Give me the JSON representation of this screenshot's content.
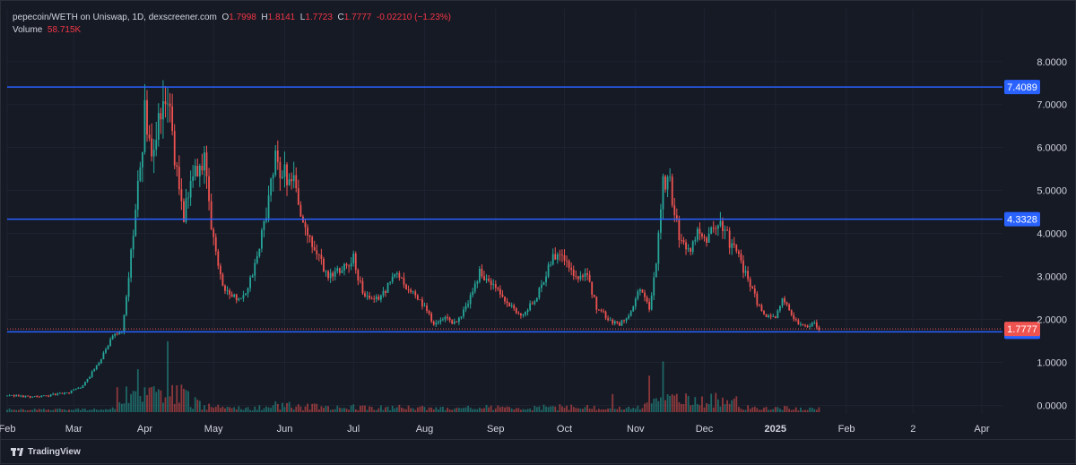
{
  "legend": {
    "title": "pepecoin/WETH on Uniswap, 1D, dexscreener.com",
    "open_label": "O",
    "open": "1.7998",
    "high_label": "H",
    "high": "1.8141",
    "low_label": "L",
    "low": "1.7723",
    "close_label": "C",
    "close": "1.7777",
    "change": "-0.02210 (−1.23%)",
    "volume_label": "Volume",
    "volume": "58.715K"
  },
  "branding": {
    "name": "TradingView"
  },
  "colors": {
    "up": "#26a69a",
    "down": "#ef5350",
    "level": "#2962ff",
    "background": "#161a25",
    "grid": "#1f2330",
    "text": "#d1d4dc"
  },
  "chart_data": {
    "type": "candlestick",
    "timeframe": "1D",
    "y_axis": {
      "ticks": [
        "8.0000",
        "7.0000",
        "6.0000",
        "5.0000",
        "4.0000",
        "3.0000",
        "2.0000",
        "1.0000",
        "0.0000"
      ],
      "range": [
        -0.2,
        8.6
      ],
      "position": "right"
    },
    "x_axis": {
      "ticks": [
        "Feb",
        "Mar",
        "Apr",
        "May",
        "Jun",
        "Jul",
        "Aug",
        "Sep",
        "Oct",
        "Nov",
        "Dec",
        "2025",
        "Feb",
        "2",
        "Apr"
      ],
      "range": [
        "2024-02-01",
        "2025-04-10"
      ]
    },
    "horizontal_levels": [
      {
        "value": 7.4089,
        "label": "7.4089"
      },
      {
        "value": 4.3328,
        "label": "4.3328"
      },
      {
        "value": 1.7105,
        "label": "1.7105"
      }
    ],
    "last_price": {
      "value": 1.7777,
      "label": "1.7777"
    },
    "price_path": [
      [
        "2024-02-01",
        0.22
      ],
      [
        "2024-02-15",
        0.2
      ],
      [
        "2024-02-28",
        0.3
      ],
      [
        "2024-03-05",
        0.45
      ],
      [
        "2024-03-12",
        1.0
      ],
      [
        "2024-03-18",
        1.6
      ],
      [
        "2024-03-22",
        1.75
      ],
      [
        "2024-03-25",
        3.0
      ],
      [
        "2024-03-28",
        4.5
      ],
      [
        "2024-04-01",
        6.8
      ],
      [
        "2024-04-04",
        5.6
      ],
      [
        "2024-04-07",
        6.9
      ],
      [
        "2024-04-11",
        7.4
      ],
      [
        "2024-04-14",
        5.7
      ],
      [
        "2024-04-18",
        4.4
      ],
      [
        "2024-04-22",
        5.4
      ],
      [
        "2024-04-27",
        5.6
      ],
      [
        "2024-04-30",
        4.1
      ],
      [
        "2024-05-05",
        2.8
      ],
      [
        "2024-05-10",
        2.5
      ],
      [
        "2024-05-15",
        2.6
      ],
      [
        "2024-05-20",
        3.4
      ],
      [
        "2024-05-25",
        4.8
      ],
      [
        "2024-05-28",
        5.7
      ],
      [
        "2024-06-01",
        5.4
      ],
      [
        "2024-06-05",
        5.3
      ],
      [
        "2024-06-10",
        4.0
      ],
      [
        "2024-06-15",
        3.5
      ],
      [
        "2024-06-20",
        3.0
      ],
      [
        "2024-06-25",
        3.2
      ],
      [
        "2024-07-01",
        3.4
      ],
      [
        "2024-07-05",
        2.6
      ],
      [
        "2024-07-10",
        2.4
      ],
      [
        "2024-07-15",
        2.7
      ],
      [
        "2024-07-20",
        3.1
      ],
      [
        "2024-07-25",
        2.7
      ],
      [
        "2024-08-01",
        2.3
      ],
      [
        "2024-08-05",
        1.9
      ],
      [
        "2024-08-10",
        2.0
      ],
      [
        "2024-08-15",
        1.9
      ],
      [
        "2024-08-20",
        2.4
      ],
      [
        "2024-08-25",
        3.1
      ],
      [
        "2024-09-01",
        2.7
      ],
      [
        "2024-09-07",
        2.3
      ],
      [
        "2024-09-12",
        2.1
      ],
      [
        "2024-09-18",
        2.4
      ],
      [
        "2024-09-25",
        3.4
      ],
      [
        "2024-09-30",
        3.6
      ],
      [
        "2024-10-05",
        3.0
      ],
      [
        "2024-10-10",
        3.1
      ],
      [
        "2024-10-15",
        2.3
      ],
      [
        "2024-10-20",
        2.0
      ],
      [
        "2024-10-25",
        1.9
      ],
      [
        "2024-10-30",
        2.2
      ],
      [
        "2024-11-03",
        2.7
      ],
      [
        "2024-11-07",
        2.3
      ],
      [
        "2024-11-10",
        3.3
      ],
      [
        "2024-11-13",
        5.3
      ],
      [
        "2024-11-16",
        5.1
      ],
      [
        "2024-11-20",
        4.0
      ],
      [
        "2024-11-25",
        3.6
      ],
      [
        "2024-11-28",
        4.0
      ],
      [
        "2024-12-02",
        3.8
      ],
      [
        "2024-12-08",
        4.3
      ],
      [
        "2024-12-12",
        3.8
      ],
      [
        "2024-12-16",
        3.4
      ],
      [
        "2024-12-20",
        3.0
      ],
      [
        "2024-12-24",
        2.4
      ],
      [
        "2024-12-28",
        2.1
      ],
      [
        "2025-01-01",
        2.0
      ],
      [
        "2025-01-04",
        2.5
      ],
      [
        "2025-01-08",
        2.1
      ],
      [
        "2025-01-12",
        1.85
      ],
      [
        "2025-01-15",
        1.78
      ],
      [
        "2025-01-18",
        1.95
      ],
      [
        "2025-01-20",
        1.78
      ]
    ],
    "volume_spikes": [
      [
        "2024-04-11",
        1.65
      ],
      [
        "2024-03-29",
        1.0
      ],
      [
        "2024-11-13",
        1.18
      ],
      [
        "2024-11-07",
        0.85
      ],
      [
        "2024-10-22",
        0.42
      ],
      [
        "2024-04-23",
        0.35
      ]
    ]
  }
}
